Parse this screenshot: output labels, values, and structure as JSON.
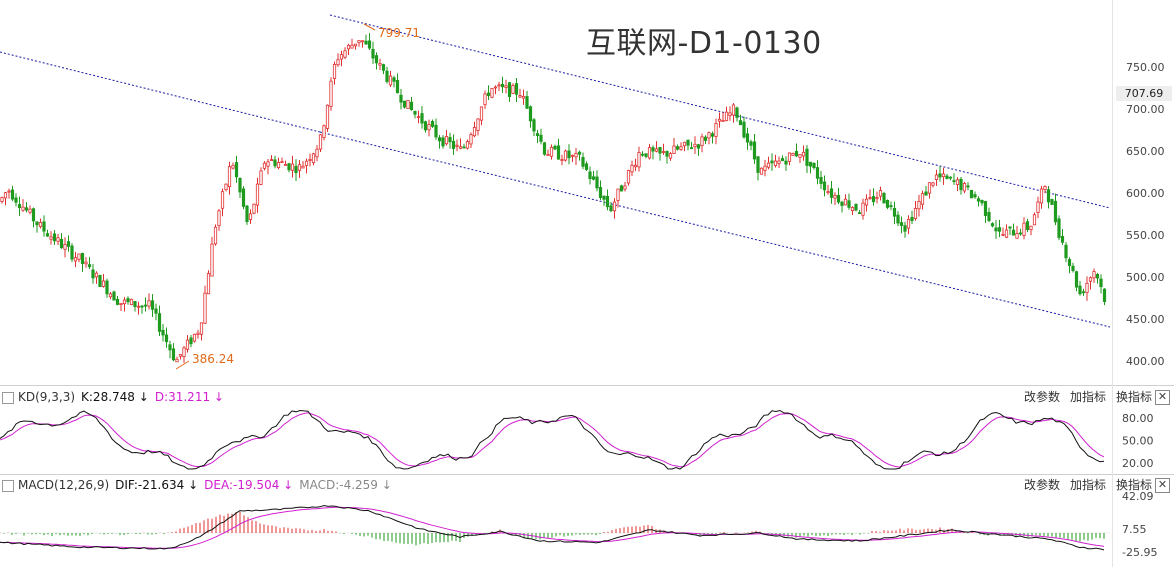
{
  "title": "互联网-D1-0130",
  "last_price_tag": "707.69",
  "kd_panel": {
    "name": "KD(9,3,3)",
    "k_label": "K:28.748",
    "d_label": "D:31.211",
    "arrow_down": "↓",
    "controls": [
      "改参数",
      "加指标",
      "换指标"
    ],
    "close": "✕"
  },
  "macd_panel": {
    "name": "MACD(12,26,9)",
    "dif_label": "DIF:-21.634",
    "dea_label": "DEA:-19.504",
    "macd_label": "MACD:-4.259",
    "arrow_down": "↓",
    "controls": [
      "改参数",
      "加指标",
      "换指标"
    ],
    "close": "✕"
  },
  "colors": {
    "up": "#e03030",
    "down": "#1e9a1e",
    "trendline": "#1a1aa8",
    "k_line": "#111111",
    "d_line": "#d020d0",
    "annotation": "#e06a1a",
    "dif_line": "#111111",
    "dea_line": "#d020d0",
    "macd_text": "#888888"
  },
  "chart_data": [
    {
      "type": "candlestick",
      "title": "互联网-D1-0130",
      "y_ticks": [
        400,
        450,
        500,
        550,
        600,
        650,
        700,
        750
      ],
      "y_tick_labels": [
        "400.00",
        "450.00",
        "500.00",
        "550.00",
        "600.00",
        "650.00",
        "700.00",
        "750.00"
      ],
      "ylim": [
        375,
        820
      ],
      "annotations": [
        {
          "label": "799.71",
          "value": 799.71
        },
        {
          "label": "386.24",
          "value": 386.24
        }
      ],
      "trendlines": "dotted",
      "grid": false
    },
    {
      "type": "line",
      "title": "KD(9,3,3)",
      "series": [
        {
          "name": "K",
          "last": 28.748
        },
        {
          "name": "D",
          "last": 31.211
        }
      ],
      "y_tick_labels": [
        "80.00",
        "50.00",
        "20.00"
      ]
    },
    {
      "type": "bar",
      "title": "MACD(12,26,9)",
      "series": [
        {
          "name": "DIF",
          "last": -21.634
        },
        {
          "name": "DEA",
          "last": -19.504
        },
        {
          "name": "MACD",
          "last": -4.259
        }
      ],
      "y_tick_labels": [
        "42.09",
        "7.55",
        "-25.95"
      ]
    }
  ]
}
